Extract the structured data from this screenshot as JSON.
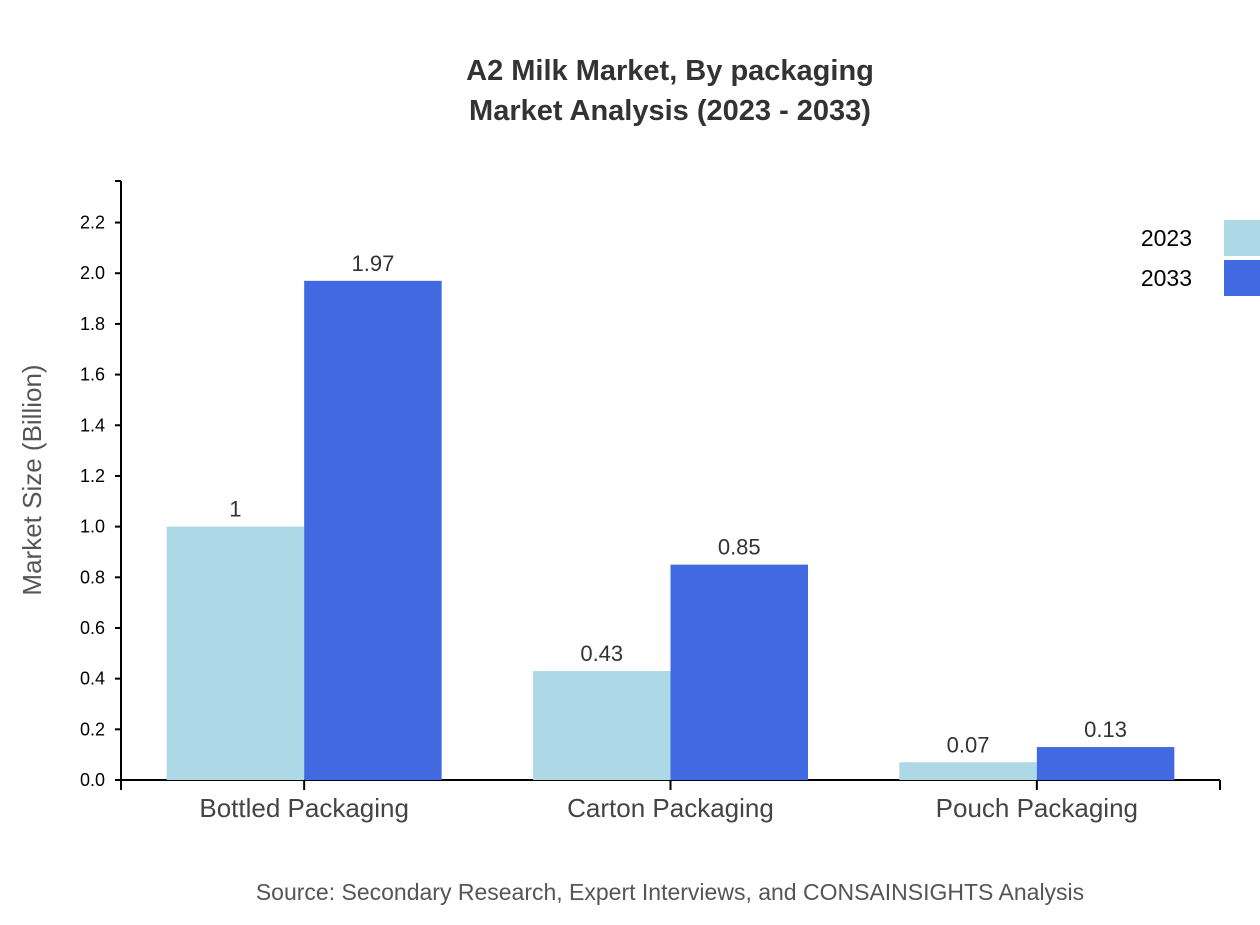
{
  "chart_data": {
    "type": "bar",
    "title": "A2 Milk Market, By packaging",
    "subtitle": "Market Analysis (2023 - 2033)",
    "xlabel": "",
    "ylabel": "Market Size (Billion)",
    "categories": [
      "Bottled Packaging",
      "Carton Packaging",
      "Pouch Packaging"
    ],
    "series": [
      {
        "name": "2023",
        "values": [
          1,
          0.43,
          0.07
        ],
        "labels": [
          "1",
          "0.43",
          "0.07"
        ],
        "color": "#add8e6"
      },
      {
        "name": "2033",
        "values": [
          1.97,
          0.85,
          0.13
        ],
        "labels": [
          "1.97",
          "0.85",
          "0.13"
        ],
        "color": "#4169e1"
      }
    ],
    "ylim": [
      0,
      2.364
    ],
    "yticks": [
      "0.0",
      "0.2",
      "0.4",
      "0.6",
      "0.8",
      "1.0",
      "1.2",
      "1.4",
      "1.6",
      "1.8",
      "2.0",
      "2.2"
    ],
    "grid": false,
    "legend": "top-right",
    "source": "Source: Secondary Research, Expert Interviews, and CONSAINSIGHTS Analysis"
  }
}
